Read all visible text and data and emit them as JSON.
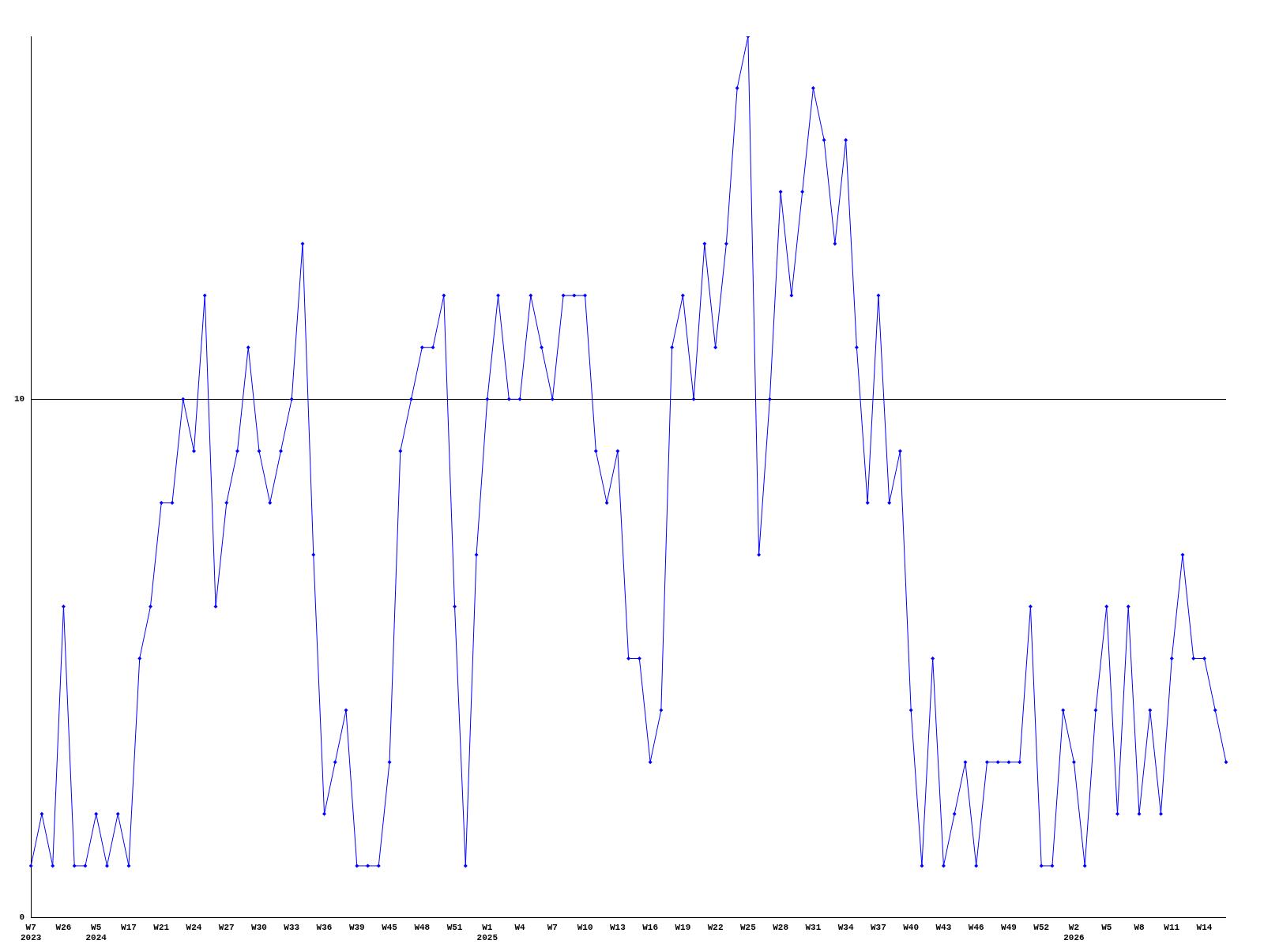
{
  "chart_data": {
    "type": "line",
    "categories": [
      "W7\n2023",
      null,
      null,
      "W26",
      null,
      null,
      "W5\n2024",
      null,
      null,
      "W17",
      null,
      null,
      "W21",
      null,
      null,
      "W24",
      null,
      null,
      "W27",
      null,
      null,
      "W30",
      null,
      null,
      "W33",
      null,
      null,
      "W36",
      null,
      null,
      "W39",
      null,
      null,
      "W45",
      null,
      null,
      "W48",
      null,
      null,
      "W51",
      null,
      null,
      "W1\n2025",
      null,
      null,
      "W4",
      null,
      null,
      "W7",
      null,
      null,
      "W10",
      null,
      null,
      "W13",
      null,
      null,
      "W16",
      null,
      null,
      "W19",
      null,
      null,
      "W22",
      null,
      null,
      "W25",
      null,
      null,
      "W28",
      null,
      null,
      "W31",
      null,
      null,
      "W34",
      null,
      null,
      "W37",
      null,
      null,
      "W40",
      null,
      null,
      "W43",
      null,
      null,
      "W46",
      null,
      null,
      "W49",
      null,
      null,
      "W52",
      null,
      null,
      "W2\n2026",
      null,
      null,
      "W5",
      null,
      null,
      "W8",
      null,
      null,
      "W11",
      null,
      null,
      "W14",
      null,
      null
    ],
    "series": [
      {
        "color": "#0000ff",
        "values": [
          1,
          2,
          1,
          6,
          1,
          1,
          2,
          1,
          2,
          1,
          5,
          6,
          8,
          8,
          10,
          9,
          12,
          6,
          8,
          9,
          11,
          9,
          8,
          9,
          10,
          13,
          7,
          2,
          3,
          4,
          1,
          1,
          1,
          3,
          9,
          10,
          11,
          11,
          12,
          6,
          1,
          7,
          10,
          12,
          10,
          10,
          12,
          11,
          10,
          12,
          12,
          12,
          9,
          8,
          9,
          5,
          5,
          3,
          4,
          11,
          12,
          10,
          13,
          11,
          13,
          16,
          17,
          7,
          10,
          14,
          12,
          14,
          16,
          15,
          13,
          15,
          11,
          8,
          12,
          8,
          9,
          4,
          1,
          5,
          1,
          2,
          3,
          1,
          3,
          3,
          3,
          3,
          6,
          1,
          1,
          4,
          3,
          1,
          4,
          6,
          2,
          6,
          2,
          4,
          2,
          5,
          7,
          5,
          5,
          4,
          3
        ]
      }
    ],
    "ylim": [
      0,
      17
    ],
    "yticks": [
      0,
      10
    ],
    "grid": "y",
    "legend": false,
    "marker": "diamond",
    "line_style": "solid"
  }
}
